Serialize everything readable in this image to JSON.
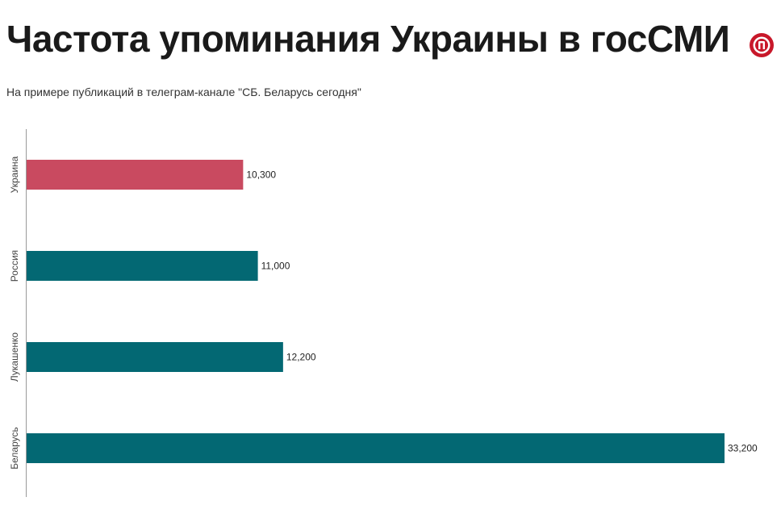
{
  "header": {
    "title": "Частота упоминания Украины в госСМИ",
    "subtitle": "На примере публикаций в телеграм-канале \"СБ. Беларусь сегодня\""
  },
  "logo": {
    "icon": "media-logo-icon",
    "color": "#c8182a"
  },
  "colors": {
    "highlight": "#c94a60",
    "default": "#036873",
    "axis": "#9a9a9a"
  },
  "chart_data": {
    "type": "bar",
    "orientation": "horizontal",
    "title": "Частота упоминания Украины в госСМИ",
    "subtitle": "На примере публикаций в телеграм-канале \"СБ. Беларусь сегодня\"",
    "categories": [
      "Украина",
      "Россия",
      "Лукашенко",
      "Беларусь"
    ],
    "values": [
      10300,
      11000,
      12200,
      33200
    ],
    "value_labels": [
      "10,300",
      "11,000",
      "12,200",
      "33,200"
    ],
    "highlight_category": "Украина",
    "xlim": [
      0,
      33200
    ],
    "grid": false,
    "legend": "none"
  }
}
